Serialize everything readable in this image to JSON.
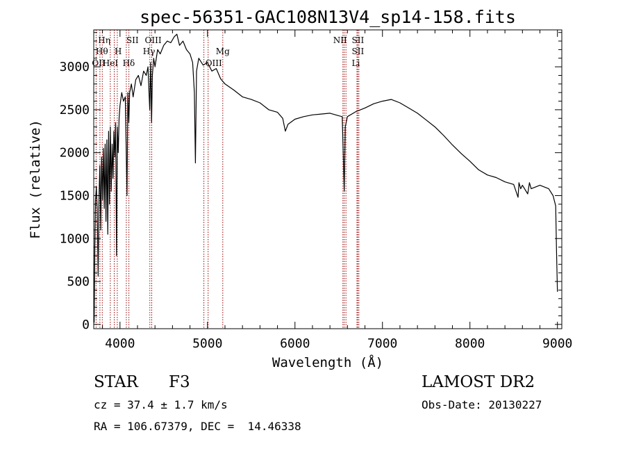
{
  "chart_data": {
    "type": "line",
    "title": "spec-56351-GAC108N13V4_sp14-158.fits",
    "xlabel": "Wavelength (Å)",
    "ylabel": "Flux (relative)",
    "xlim": [
      3700,
      9050
    ],
    "ylim": [
      -50,
      3430
    ],
    "xticks": [
      4000,
      5000,
      6000,
      7000,
      8000,
      9000
    ],
    "yticks": [
      0,
      500,
      1000,
      1500,
      2000,
      2500,
      3000
    ],
    "grid": false,
    "line_color": "#000000",
    "marker_color": "#990000",
    "series": [
      {
        "x": [
          3705,
          3712,
          3720,
          3730,
          3740,
          3750,
          3760,
          3770,
          3780,
          3790,
          3800,
          3810,
          3820,
          3830,
          3840,
          3850,
          3860,
          3870,
          3880,
          3890,
          3900,
          3910,
          3920,
          3930,
          3940,
          3950,
          3960,
          3970,
          3980,
          3990,
          4000,
          4020,
          4040,
          4060,
          4080,
          4090,
          4101,
          4110,
          4130,
          4150,
          4180,
          4210,
          4240,
          4270,
          4300,
          4320,
          4340,
          4350,
          4361,
          4370,
          4385,
          4400,
          4430,
          4460,
          4500,
          4540,
          4580,
          4620,
          4650,
          4680,
          4720,
          4760,
          4800,
          4830,
          4850,
          4862,
          4875,
          4900,
          4950,
          5000,
          5050,
          5100,
          5150,
          5200,
          5300,
          5400,
          5500,
          5600,
          5700,
          5800,
          5860,
          5890,
          5920,
          6000,
          6100,
          6200,
          6300,
          6400,
          6500,
          6540,
          6553,
          6563,
          6575,
          6600,
          6700,
          6800,
          6900,
          7000,
          7100,
          7200,
          7300,
          7400,
          7500,
          7600,
          7700,
          7800,
          7900,
          8000,
          8100,
          8200,
          8300,
          8400,
          8500,
          8550,
          8560,
          8580,
          8600,
          8660,
          8680,
          8700,
          8800,
          8900,
          8950,
          8980,
          8990,
          9000
        ],
        "values": [
          20,
          900,
          1450,
          1600,
          1350,
          560,
          1500,
          1850,
          1100,
          1950,
          1450,
          2050,
          1350,
          2100,
          1200,
          2150,
          1050,
          2250,
          1400,
          2300,
          1550,
          2100,
          1700,
          2250,
          1950,
          2350,
          800,
          2300,
          2000,
          2400,
          2550,
          2700,
          2600,
          2650,
          1500,
          2700,
          2350,
          2700,
          2800,
          2650,
          2850,
          2900,
          2780,
          2950,
          2900,
          3000,
          2500,
          3050,
          2350,
          2900,
          3100,
          3000,
          3200,
          3150,
          3250,
          3300,
          3280,
          3350,
          3380,
          3250,
          3300,
          3200,
          3150,
          3050,
          2700,
          1880,
          2950,
          3100,
          3020,
          3050,
          2950,
          2980,
          2860,
          2800,
          2730,
          2650,
          2620,
          2580,
          2500,
          2470,
          2400,
          2250,
          2330,
          2390,
          2420,
          2440,
          2450,
          2460,
          2430,
          2420,
          1950,
          1550,
          2300,
          2420,
          2480,
          2520,
          2570,
          2600,
          2620,
          2580,
          2520,
          2460,
          2380,
          2300,
          2200,
          2090,
          1990,
          1900,
          1800,
          1740,
          1710,
          1660,
          1630,
          1480,
          1650,
          1580,
          1620,
          1520,
          1650,
          1580,
          1620,
          1580,
          1500,
          1380,
          850,
          380
        ]
      }
    ],
    "lines": [
      {
        "x": 3727,
        "labels": [
          "OII"
        ]
      },
      {
        "x": 3771,
        "labels": [
          "Hθ"
        ]
      },
      {
        "x": 3798,
        "labels": [
          "Hη"
        ]
      },
      {
        "x": 3889,
        "labels": [
          "HeI"
        ]
      },
      {
        "x": 3934,
        "labels": []
      },
      {
        "x": 3969,
        "labels": [
          "H"
        ]
      },
      {
        "x": 4072,
        "labels": [
          "SII"
        ]
      },
      {
        "x": 4102,
        "labels": [
          "Hδ"
        ]
      },
      {
        "x": 4341,
        "labels": [
          "Hγ"
        ]
      },
      {
        "x": 4363,
        "labels": [
          "OIII"
        ]
      },
      {
        "x": 4959,
        "labels": []
      },
      {
        "x": 5007,
        "labels": [
          "OIII"
        ]
      },
      {
        "x": 5175,
        "labels": [
          "Mg"
        ]
      },
      {
        "x": 6548,
        "labels": [
          "NII"
        ]
      },
      {
        "x": 6563,
        "labels": []
      },
      {
        "x": 6583,
        "labels": []
      },
      {
        "x": 6708,
        "labels": [
          "Li"
        ]
      },
      {
        "x": 6717,
        "labels": [
          "SII"
        ]
      },
      {
        "x": 6731,
        "labels": [
          "SII"
        ]
      }
    ]
  },
  "info": {
    "class_label": "STAR",
    "subclass_label": "F3",
    "survey": "LAMOST DR2",
    "cz": "cz = 37.4 ± 1.7 km/s",
    "obs_date": "Obs-Date: 20130227",
    "coords": "RA = 106.67379, DEC =  14.46338"
  }
}
